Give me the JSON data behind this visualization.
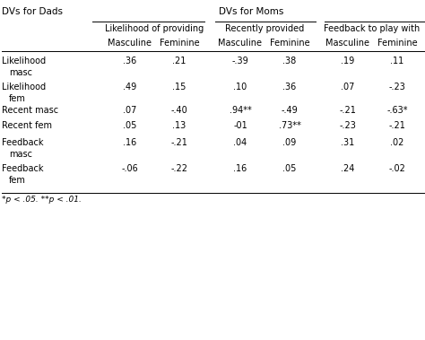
{
  "title_left": "DVs for Dads",
  "title_center": "DVs for Moms",
  "col_groups": [
    "Likelihood of providing",
    "Recently provided",
    "Feedback to play with"
  ],
  "col_subheaders": [
    "Masculine",
    "Feminine",
    "Masculine",
    "Feminine",
    "Masculine",
    "Feminine"
  ],
  "row_labels_line1": [
    "Likelihood",
    "Likelihood",
    "Recent masc",
    "Recent fem",
    "Feedback",
    "Feedback"
  ],
  "row_labels_line2": [
    "masc",
    "fem",
    "",
    "",
    "masc",
    "fem"
  ],
  "data": [
    [
      ".36",
      ".21",
      "-.39",
      ".38",
      ".19",
      ".11"
    ],
    [
      ".49",
      ".15",
      ".10",
      ".36",
      ".07",
      "-.23"
    ],
    [
      ".07",
      "-.40",
      ".94**",
      "-.49",
      "-.21",
      "-.63*"
    ],
    [
      ".05",
      ".13",
      "-01",
      ".73**",
      "-.23",
      "-.21"
    ],
    [
      ".16",
      "-.21",
      ".04",
      ".09",
      ".31",
      ".02"
    ],
    [
      "-.06",
      "-.22",
      ".16",
      ".05",
      ".24",
      "-.02"
    ]
  ],
  "footnote": "*p < .05. **p < .01.",
  "bg_color": "#ffffff",
  "text_color": "#000000",
  "font_size": 7.0,
  "title_font_size": 7.5
}
